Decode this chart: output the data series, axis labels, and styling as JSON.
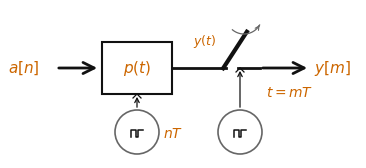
{
  "fig_width": 3.66,
  "fig_height": 1.68,
  "dpi": 100,
  "bg_color": "#ffffff",
  "color_signal": "#cc6600",
  "color_black": "#111111",
  "color_gray": "#666666",
  "label_an": "$a[n]$",
  "label_pt": "$p(t)$",
  "label_yt": "$y(t)$",
  "label_nT": "$nT$",
  "label_tmT": "$t = mT$",
  "label_ym": "$y[m]$"
}
